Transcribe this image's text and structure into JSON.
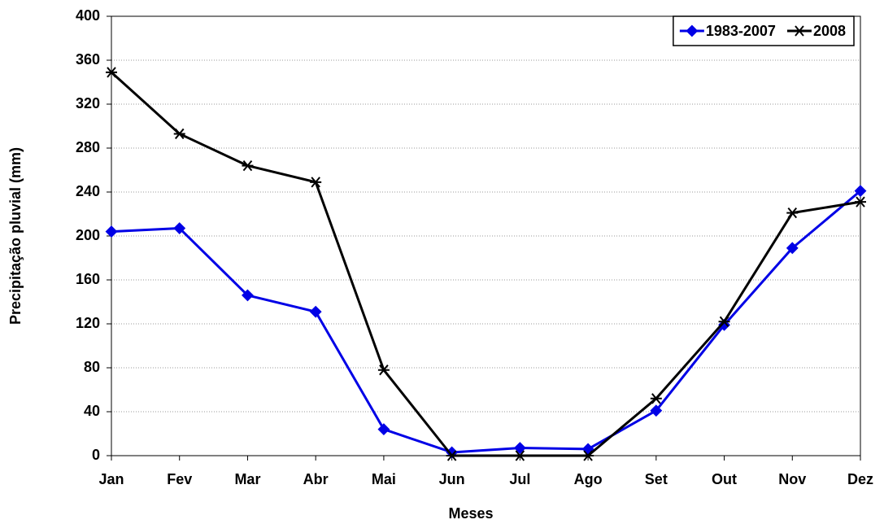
{
  "chart_data": {
    "type": "line",
    "x_label": "Meses",
    "y_label": "Precipitação pluvial (mm)",
    "categories": [
      "Jan",
      "Fev",
      "Mar",
      "Abr",
      "Mai",
      "Jun",
      "Jul",
      "Ago",
      "Set",
      "Out",
      "Nov",
      "Dez"
    ],
    "series": [
      {
        "name": "1983-2007",
        "color": "#0000e6",
        "marker": "diamond",
        "values": [
          204,
          207,
          146,
          131,
          24,
          3,
          7,
          6,
          41,
          119,
          189,
          241
        ]
      },
      {
        "name": "2008",
        "color": "#000000",
        "marker": "star",
        "values": [
          349,
          293,
          264,
          249,
          78,
          0,
          0,
          0,
          52,
          122,
          221,
          231
        ]
      }
    ],
    "ylim": [
      0,
      400
    ],
    "yticks": [
      0,
      40,
      80,
      120,
      160,
      200,
      240,
      280,
      320,
      360,
      400
    ],
    "grid": true,
    "legend": "top-right"
  }
}
